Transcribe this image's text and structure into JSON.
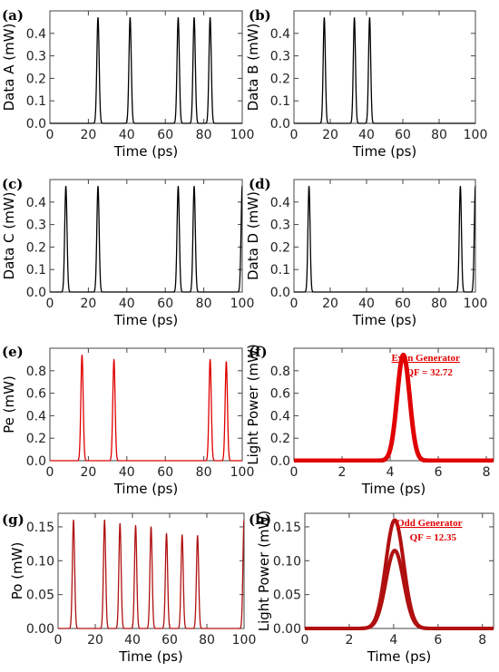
{
  "chart_data": [
    {
      "panel": "(a)",
      "type": "line",
      "xlabel": "Time (ps)",
      "ylabel": "Data A (mW)",
      "xlim": [
        0,
        100
      ],
      "ylim": [
        0,
        0.5
      ],
      "xticks": [
        "0",
        "20",
        "40",
        "60",
        "80",
        "100"
      ],
      "xtick_values": [
        0,
        20,
        40,
        60,
        80,
        100
      ],
      "yticks": [
        "0.0",
        "0.1",
        "0.2",
        "0.3",
        "0.4"
      ],
      "ytick_values": [
        0,
        0.1,
        0.2,
        0.3,
        0.4
      ],
      "color": "#000000",
      "pulse_width_ps": 0.6,
      "peaks": [
        {
          "t": 25,
          "p": 0.47
        },
        {
          "t": 41.7,
          "p": 0.47
        },
        {
          "t": 66.7,
          "p": 0.47
        },
        {
          "t": 75,
          "p": 0.47
        },
        {
          "t": 83.3,
          "p": 0.47
        }
      ]
    },
    {
      "panel": "(b)",
      "type": "line",
      "xlabel": "Time (ps)",
      "ylabel": "Data B (mW)",
      "xlim": [
        0,
        100
      ],
      "ylim": [
        0,
        0.5
      ],
      "xticks": [
        "0",
        "20",
        "40",
        "60",
        "80",
        "100"
      ],
      "xtick_values": [
        0,
        20,
        40,
        60,
        80,
        100
      ],
      "yticks": [
        "0.0",
        "0.1",
        "0.2",
        "0.3",
        "0.4"
      ],
      "ytick_values": [
        0,
        0.1,
        0.2,
        0.3,
        0.4
      ],
      "color": "#000000",
      "pulse_width_ps": 0.6,
      "peaks": [
        {
          "t": 16.7,
          "p": 0.47
        },
        {
          "t": 33.3,
          "p": 0.47
        },
        {
          "t": 41.7,
          "p": 0.47
        }
      ]
    },
    {
      "panel": "(c)",
      "type": "line",
      "xlabel": "Time (ps)",
      "ylabel": "Data C (mW)",
      "xlim": [
        0,
        100
      ],
      "ylim": [
        0,
        0.5
      ],
      "xticks": [
        "0",
        "20",
        "40",
        "60",
        "80",
        "100"
      ],
      "xtick_values": [
        0,
        20,
        40,
        60,
        80,
        100
      ],
      "yticks": [
        "0.0",
        "0.1",
        "0.2",
        "0.3",
        "0.4"
      ],
      "ytick_values": [
        0,
        0.1,
        0.2,
        0.3,
        0.4
      ],
      "color": "#000000",
      "pulse_width_ps": 0.6,
      "peaks": [
        {
          "t": 8.3,
          "p": 0.47
        },
        {
          "t": 25,
          "p": 0.47
        },
        {
          "t": 66.7,
          "p": 0.47
        },
        {
          "t": 75,
          "p": 0.47
        },
        {
          "t": 100,
          "p": 0.47
        }
      ]
    },
    {
      "panel": "(d)",
      "type": "line",
      "xlabel": "Time (ps)",
      "ylabel": "Data D (mW)",
      "xlim": [
        0,
        100
      ],
      "ylim": [
        0,
        0.5
      ],
      "xticks": [
        "0",
        "20",
        "40",
        "60",
        "80",
        "100"
      ],
      "xtick_values": [
        0,
        20,
        40,
        60,
        80,
        100
      ],
      "yticks": [
        "0.0",
        "0.1",
        "0.2",
        "0.3",
        "0.4"
      ],
      "ytick_values": [
        0,
        0.1,
        0.2,
        0.3,
        0.4
      ],
      "color": "#000000",
      "pulse_width_ps": 0.6,
      "peaks": [
        {
          "t": 8.3,
          "p": 0.47
        },
        {
          "t": 91.7,
          "p": 0.47
        },
        {
          "t": 100,
          "p": 0.47
        }
      ]
    },
    {
      "panel": "(e)",
      "type": "line",
      "xlabel": "Time (ps)",
      "ylabel": "Pe (mW)",
      "xlim": [
        0,
        100
      ],
      "ylim": [
        0,
        1.0
      ],
      "xticks": [
        "0",
        "20",
        "40",
        "60",
        "80",
        "100"
      ],
      "xtick_values": [
        0,
        20,
        40,
        60,
        80,
        100
      ],
      "yticks": [
        "0.0",
        "0.2",
        "0.4",
        "0.6",
        "0.8"
      ],
      "ytick_values": [
        0,
        0.2,
        0.4,
        0.6,
        0.8
      ],
      "color": "#e00000",
      "pulse_width_ps": 0.6,
      "peaks": [
        {
          "t": 16.7,
          "p": 0.94
        },
        {
          "t": 33.3,
          "p": 0.9
        },
        {
          "t": 83.3,
          "p": 0.9
        },
        {
          "t": 91.7,
          "p": 0.88
        }
      ]
    },
    {
      "panel": "(f)",
      "type": "line",
      "xlabel": "Time (ps)",
      "ylabel": "Light Power (mW)",
      "xlim": [
        0,
        8.3
      ],
      "ylim": [
        0,
        1.0
      ],
      "xticks": [
        "0",
        "2",
        "4",
        "6",
        "8"
      ],
      "xtick_values": [
        0,
        2,
        4,
        6,
        8
      ],
      "yticks": [
        "0.0",
        "0.2",
        "0.4",
        "0.6",
        "0.8"
      ],
      "ytick_values": [
        0,
        0.2,
        0.4,
        0.6,
        0.8
      ],
      "color": "#e00000",
      "stroke": 5,
      "pulse_width_ps": 0.26,
      "peaks": [
        {
          "t": 4.55,
          "p": 0.94
        }
      ],
      "annotation": {
        "line1": "Even Generator",
        "line2": "QF = 32.72"
      }
    },
    {
      "panel": "(g)",
      "type": "line",
      "xlabel": "Time (ps)",
      "ylabel": "Po (mW)",
      "xlim": [
        0,
        100
      ],
      "ylim": [
        0,
        0.17
      ],
      "xticks": [
        "0",
        "20",
        "40",
        "60",
        "80",
        "100"
      ],
      "xtick_values": [
        0,
        20,
        40,
        60,
        80,
        100
      ],
      "yticks": [
        "0.00",
        "0.05",
        "0.10",
        "0.15"
      ],
      "ytick_values": [
        0,
        0.05,
        0.1,
        0.15
      ],
      "color": "#b01010",
      "pulse_width_ps": 0.6,
      "peaks": [
        {
          "t": 8.3,
          "p": 0.16
        },
        {
          "t": 25,
          "p": 0.16
        },
        {
          "t": 33.3,
          "p": 0.155
        },
        {
          "t": 41.7,
          "p": 0.152
        },
        {
          "t": 50,
          "p": 0.15
        },
        {
          "t": 58.3,
          "p": 0.14
        },
        {
          "t": 66.7,
          "p": 0.138
        },
        {
          "t": 75,
          "p": 0.137
        },
        {
          "t": 100,
          "p": 0.16
        }
      ]
    },
    {
      "panel": "(h)",
      "type": "line",
      "xlabel": "Time (ps)",
      "ylabel": "Light Power (mW)",
      "xlim": [
        0,
        8.5
      ],
      "ylim": [
        0,
        0.17
      ],
      "xticks": [
        "0",
        "2",
        "4",
        "6",
        "8"
      ],
      "xtick_values": [
        0,
        2,
        4,
        6,
        8
      ],
      "yticks": [
        "0.00",
        "0.05",
        "0.10",
        "0.15"
      ],
      "ytick_values": [
        0,
        0.05,
        0.1,
        0.15
      ],
      "color": "#b01010",
      "stroke": 4,
      "pulse_width_ps": 0.4,
      "peaks": [
        {
          "t": 4.05,
          "p": 0.16
        },
        {
          "t": 4.05,
          "p": 0.115
        }
      ],
      "annotation": {
        "line1": "Odd Generator",
        "line2": "QF = 12.35"
      }
    }
  ]
}
